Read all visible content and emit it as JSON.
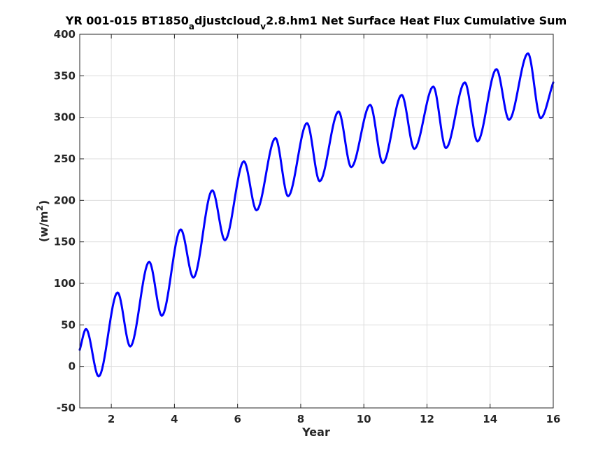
{
  "chart_data": {
    "type": "line",
    "title": {
      "main": "YR 001-015 BT1850",
      "sub1": "a",
      "mid": "djustcloud",
      "sub2": "v",
      "tail": "2.8.hm1 Net Surface Heat Flux  Cumulative Sum"
    },
    "xlabel": "Year",
    "ylabel": {
      "prefix": "(w/m",
      "sup": "2",
      "suffix": ")"
    },
    "xlim": [
      1,
      16
    ],
    "ylim": [
      -50,
      400
    ],
    "xticks": [
      2,
      4,
      6,
      8,
      10,
      12,
      14,
      16
    ],
    "yticks": [
      -50,
      0,
      50,
      100,
      150,
      200,
      250,
      300,
      350,
      400
    ],
    "grid": true,
    "line_color": "#0000ff",
    "series": [
      {
        "x": [
          1.0,
          1.2,
          1.6,
          2.2,
          2.6,
          3.2,
          3.6,
          4.2,
          4.6,
          5.2,
          5.6,
          6.2,
          6.6,
          7.2,
          7.6,
          8.2,
          8.6,
          9.2,
          9.6,
          10.2,
          10.6,
          11.2,
          11.6,
          12.2,
          12.6,
          13.2,
          13.6,
          14.2,
          14.6,
          15.2,
          15.6,
          16.0
        ],
        "y": [
          20,
          45,
          -12,
          89,
          24,
          126,
          61,
          165,
          107,
          212,
          152,
          247,
          188,
          275,
          205,
          293,
          223,
          307,
          240,
          315,
          245,
          327,
          262,
          337,
          263,
          342,
          271,
          358,
          297,
          377,
          299,
          342
        ]
      }
    ]
  }
}
